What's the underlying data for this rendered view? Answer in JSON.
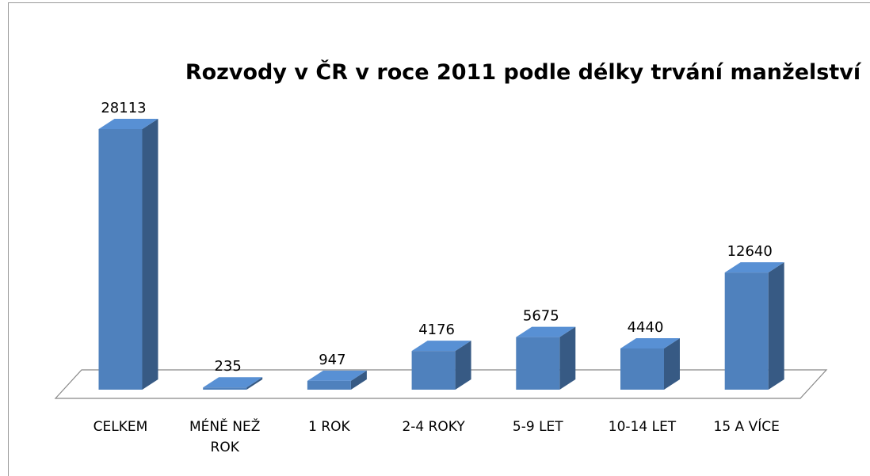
{
  "chart_data": {
    "type": "bar3d",
    "title": "Rozvody v ČR v roce 2011 podle délky trvání manželství",
    "categories": [
      "CELKEM",
      "MÉNĚ NEŽ ROK",
      "1 ROK",
      "2-4 ROKY",
      "5-9 LET",
      "10-14 LET",
      "15 A VÍCE"
    ],
    "values": [
      28113,
      235,
      947,
      4176,
      5675,
      4440,
      12640
    ],
    "color": "#4f81bd"
  }
}
